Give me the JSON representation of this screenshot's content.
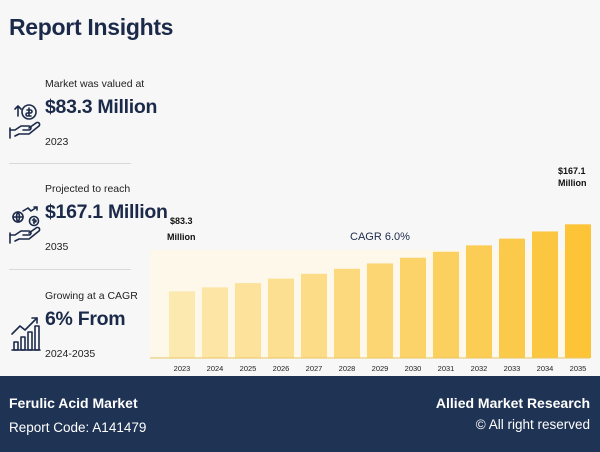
{
  "header": {
    "title": "Report Insights"
  },
  "stats": [
    {
      "caption": "Market was valued at",
      "value": "$83.3 Million",
      "period": "2023",
      "icon": "hand-coin-icon"
    },
    {
      "caption": "Projected to reach",
      "value": "$167.1 Million",
      "period": "2035",
      "icon": "hand-growth-icon"
    },
    {
      "caption": "Growing at a CAGR",
      "value": "6% From",
      "period": "2024-2035",
      "icon": "rising-chart-icon"
    }
  ],
  "chart_data": {
    "type": "bar",
    "categories": [
      "2023",
      "2024",
      "2025",
      "2026",
      "2027",
      "2028",
      "2029",
      "2030",
      "2031",
      "2032",
      "2033",
      "2034",
      "2035"
    ],
    "values": [
      83.3,
      88.3,
      93.6,
      99.2,
      105.2,
      111.5,
      118.2,
      125.3,
      132.8,
      140.8,
      149.2,
      158.2,
      167.1
    ],
    "ylim": [
      0,
      200
    ],
    "colors": [
      "#fce9b0",
      "#fce5a5",
      "#fce29b",
      "#fcdf90",
      "#fcdc86",
      "#fcd97c",
      "#fcd672",
      "#fcd368",
      "#fcd05e",
      "#fccd54",
      "#fcca4a",
      "#fcc740",
      "#fcc436"
    ],
    "annotations": {
      "start": {
        "line1": "$83.3",
        "line2": "Million"
      },
      "end": {
        "line1": "$167.1",
        "line2": "Million"
      },
      "cagr": "CAGR 6.0%"
    }
  },
  "footer": {
    "report_name": "Ferulic Acid Market",
    "report_code": "Report Code: A141479",
    "brand": "Allied Market Research",
    "rights": "© All right reserved"
  },
  "colors": {
    "navy": "#1f3355",
    "title": "#1c2a4a"
  }
}
